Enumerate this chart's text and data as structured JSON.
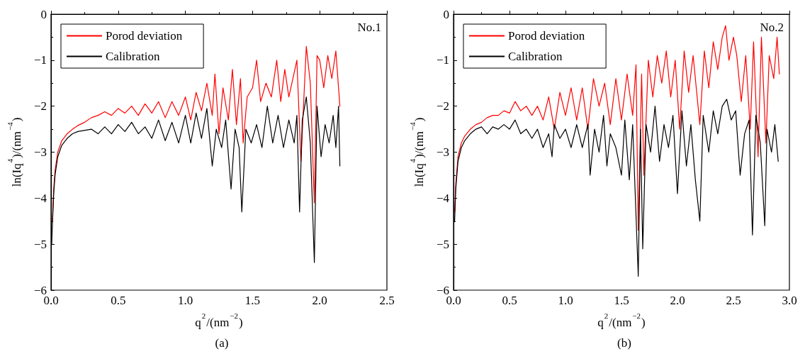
{
  "chart_data": [
    {
      "type": "line",
      "title": "(a)",
      "xlabel": "q$^{2}$/(nm$^{−2}$)",
      "ylabel": "ln(Iq$^{4}$)/(nm$^{−4}$)",
      "annotations": [
        "No.1"
      ],
      "legend": "top left",
      "grid": false,
      "marker": "none",
      "line_style": "solid",
      "xlim": [
        0,
        2.5
      ],
      "xticks": [
        {
          "value": 0,
          "label": "0.0"
        },
        0.5,
        {
          "value": 1,
          "label": "1.0"
        },
        1.5,
        {
          "value": 2,
          "label": "2.0"
        },
        2.5
      ],
      "ylim": [
        -6,
        0
      ],
      "yticks": [
        {
          "value": -6,
          "label": "−6"
        },
        {
          "value": -5,
          "label": "−5"
        },
        {
          "value": -4,
          "label": "−4"
        },
        {
          "value": -3,
          "label": "−3"
        },
        {
          "value": -2,
          "label": "−2"
        },
        {
          "value": -1,
          "label": "−1"
        },
        0
      ],
      "series": [
        {
          "name": "Porod deviation",
          "color": "#ff0000",
          "x": [
            0.01,
            0.02,
            0.03,
            0.05,
            0.08,
            0.12,
            0.16,
            0.2,
            0.25,
            0.3,
            0.35,
            0.4,
            0.45,
            0.5,
            0.55,
            0.6,
            0.65,
            0.7,
            0.75,
            0.8,
            0.85,
            0.9,
            0.95,
            1.0,
            1.04,
            1.08,
            1.12,
            1.16,
            1.2,
            1.22,
            1.25,
            1.28,
            1.32,
            1.35,
            1.38,
            1.41,
            1.43,
            1.46,
            1.5,
            1.53,
            1.56,
            1.6,
            1.64,
            1.68,
            1.71,
            1.74,
            1.77,
            1.8,
            1.83,
            1.86,
            1.9,
            1.93,
            1.96,
            1.98,
            2.0,
            2.03,
            2.06,
            2.09,
            2.12,
            2.14,
            2.15
          ],
          "values": [
            -4.5,
            -3.8,
            -3.4,
            -3.0,
            -2.75,
            -2.6,
            -2.5,
            -2.42,
            -2.35,
            -2.25,
            -2.2,
            -2.12,
            -2.2,
            -2.05,
            -2.15,
            -2.0,
            -2.2,
            -1.95,
            -2.15,
            -1.9,
            -2.25,
            -1.9,
            -2.2,
            -1.8,
            -2.3,
            -1.7,
            -2.1,
            -1.5,
            -2.2,
            -1.3,
            -2.6,
            -1.6,
            -2.3,
            -1.2,
            -2.4,
            -1.4,
            -2.8,
            -1.8,
            -1.6,
            -1.0,
            -1.9,
            -1.5,
            -1.8,
            -1.0,
            -1.9,
            -1.2,
            -1.8,
            -1.4,
            -1.0,
            -3.2,
            -0.7,
            -1.5,
            -4.1,
            -0.9,
            -1.0,
            -1.6,
            -0.9,
            -1.4,
            -0.8,
            -1.6,
            -2.0
          ]
        },
        {
          "name": "Calibration",
          "color": "#000000",
          "x": [
            0.005,
            0.01,
            0.02,
            0.03,
            0.05,
            0.08,
            0.12,
            0.16,
            0.2,
            0.3,
            0.35,
            0.4,
            0.45,
            0.5,
            0.55,
            0.6,
            0.65,
            0.7,
            0.75,
            0.8,
            0.85,
            0.9,
            0.95,
            1.0,
            1.04,
            1.08,
            1.12,
            1.16,
            1.2,
            1.23,
            1.27,
            1.3,
            1.34,
            1.37,
            1.4,
            1.42,
            1.45,
            1.49,
            1.53,
            1.57,
            1.61,
            1.65,
            1.69,
            1.73,
            1.77,
            1.81,
            1.83,
            1.85,
            1.87,
            1.9,
            1.93,
            1.96,
            1.98,
            2.01,
            2.04,
            2.07,
            2.1,
            2.12,
            2.14,
            2.15
          ],
          "values": [
            -5.0,
            -4.6,
            -3.9,
            -3.5,
            -3.1,
            -2.85,
            -2.7,
            -2.6,
            -2.55,
            -2.5,
            -2.6,
            -2.45,
            -2.6,
            -2.4,
            -2.55,
            -2.35,
            -2.6,
            -2.45,
            -2.7,
            -2.3,
            -2.75,
            -2.35,
            -2.8,
            -2.2,
            -2.8,
            -2.15,
            -2.7,
            -2.05,
            -3.3,
            -2.5,
            -2.9,
            -2.3,
            -3.8,
            -2.5,
            -2.9,
            -4.3,
            -2.5,
            -2.8,
            -2.4,
            -2.9,
            -2.0,
            -2.8,
            -2.2,
            -2.9,
            -2.3,
            -2.8,
            -2.2,
            -4.3,
            -2.3,
            -1.8,
            -2.8,
            -5.4,
            -2.0,
            -3.1,
            -2.4,
            -2.8,
            -2.2,
            -2.9,
            -2.0,
            -3.3
          ]
        }
      ]
    },
    {
      "type": "line",
      "title": "(b)",
      "xlabel": "q$^{2}$/(nm$^{−2}$)",
      "ylabel": "ln(Iq$^{4}$)/(nm$^{−4}$)",
      "annotations": [
        "No.2"
      ],
      "legend": "top left",
      "grid": false,
      "marker": "none",
      "line_style": "solid",
      "xlim": [
        0,
        3
      ],
      "xticks": [
        {
          "value": 0,
          "label": "0.0"
        },
        0.5,
        {
          "value": 1,
          "label": "1.0"
        },
        1.5,
        {
          "value": 2,
          "label": "2.0"
        },
        2.5,
        {
          "value": 3,
          "label": "3.0"
        }
      ],
      "ylim": [
        -6,
        0
      ],
      "yticks": [
        {
          "value": -6,
          "label": "−6"
        },
        {
          "value": -5,
          "label": "−5"
        },
        {
          "value": -4,
          "label": "−4"
        },
        {
          "value": -3,
          "label": "−3"
        },
        {
          "value": -2,
          "label": "−2"
        },
        {
          "value": -1,
          "label": "−1"
        },
        0
      ],
      "series": [
        {
          "name": "Porod deviation",
          "color": "#ff0000",
          "x": [
            0.01,
            0.02,
            0.04,
            0.07,
            0.1,
            0.15,
            0.2,
            0.25,
            0.3,
            0.35,
            0.4,
            0.45,
            0.5,
            0.55,
            0.6,
            0.65,
            0.7,
            0.75,
            0.8,
            0.85,
            0.9,
            0.95,
            1.0,
            1.05,
            1.1,
            1.15,
            1.2,
            1.25,
            1.3,
            1.35,
            1.4,
            1.45,
            1.5,
            1.55,
            1.6,
            1.63,
            1.65,
            1.68,
            1.7,
            1.74,
            1.78,
            1.82,
            1.86,
            1.9,
            1.94,
            1.98,
            2.02,
            2.06,
            2.1,
            2.14,
            2.18,
            2.2,
            2.24,
            2.28,
            2.32,
            2.36,
            2.4,
            2.43,
            2.46,
            2.5,
            2.53,
            2.57,
            2.61,
            2.65,
            2.68,
            2.72,
            2.75,
            2.79,
            2.82,
            2.86,
            2.89,
            2.91
          ],
          "values": [
            -4.3,
            -3.7,
            -3.1,
            -2.8,
            -2.65,
            -2.5,
            -2.4,
            -2.35,
            -2.25,
            -2.2,
            -2.2,
            -2.1,
            -2.15,
            -1.9,
            -2.1,
            -2.0,
            -2.2,
            -2.0,
            -2.3,
            -1.8,
            -2.5,
            -1.7,
            -2.2,
            -1.6,
            -2.3,
            -1.6,
            -2.5,
            -1.4,
            -2.0,
            -1.5,
            -2.4,
            -1.4,
            -2.3,
            -1.3,
            -2.2,
            -1.1,
            -4.7,
            -1.3,
            -3.5,
            -1.0,
            -1.8,
            -0.9,
            -1.5,
            -0.8,
            -1.8,
            -1.0,
            -2.5,
            -0.8,
            -1.7,
            -0.9,
            -1.9,
            -2.4,
            -0.8,
            -1.6,
            -0.6,
            -1.2,
            -0.5,
            -0.25,
            -1.0,
            -0.5,
            -0.9,
            -1.9,
            -0.9,
            -2.5,
            -0.6,
            -3.1,
            -0.5,
            -2.8,
            -0.9,
            -1.4,
            -0.5,
            -1.3
          ]
        },
        {
          "name": "Calibration",
          "color": "#000000",
          "x": [
            0.01,
            0.02,
            0.04,
            0.07,
            0.1,
            0.15,
            0.2,
            0.25,
            0.3,
            0.35,
            0.4,
            0.45,
            0.5,
            0.55,
            0.6,
            0.65,
            0.7,
            0.75,
            0.8,
            0.85,
            0.88,
            0.9,
            0.95,
            1.0,
            1.05,
            1.1,
            1.15,
            1.2,
            1.22,
            1.26,
            1.3,
            1.34,
            1.37,
            1.4,
            1.45,
            1.5,
            1.53,
            1.57,
            1.6,
            1.65,
            1.67,
            1.69,
            1.72,
            1.76,
            1.8,
            1.84,
            1.88,
            1.92,
            1.96,
            2.0,
            2.04,
            2.08,
            2.12,
            2.16,
            2.2,
            2.23,
            2.28,
            2.32,
            2.36,
            2.4,
            2.44,
            2.48,
            2.52,
            2.56,
            2.6,
            2.64,
            2.67,
            2.7,
            2.74,
            2.78,
            2.8,
            2.84,
            2.87,
            2.9
          ],
          "values": [
            -4.5,
            -3.8,
            -3.2,
            -2.9,
            -2.75,
            -2.6,
            -2.5,
            -2.45,
            -2.6,
            -2.45,
            -2.5,
            -2.4,
            -2.5,
            -2.3,
            -2.6,
            -2.5,
            -2.7,
            -2.5,
            -2.9,
            -2.6,
            -3.1,
            -2.4,
            -2.7,
            -2.5,
            -2.9,
            -2.4,
            -2.9,
            -2.4,
            -3.5,
            -2.5,
            -3.0,
            -2.2,
            -3.3,
            -2.6,
            -2.9,
            -3.5,
            -2.3,
            -3.6,
            -2.4,
            -5.7,
            -2.5,
            -5.1,
            -2.4,
            -3.0,
            -2.0,
            -3.2,
            -2.4,
            -2.9,
            -2.2,
            -3.9,
            -2.1,
            -3.3,
            -2.4,
            -3.6,
            -4.5,
            -2.2,
            -3.0,
            -2.1,
            -2.6,
            -2.0,
            -1.85,
            -2.3,
            -2.1,
            -3.5,
            -2.6,
            -2.3,
            -4.8,
            -2.2,
            -2.8,
            -4.6,
            -2.5,
            -3.0,
            -2.4,
            -3.2
          ]
        }
      ]
    }
  ]
}
